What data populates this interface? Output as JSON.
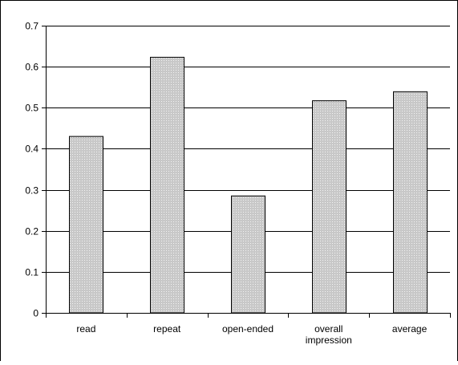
{
  "chart_data": {
    "type": "bar",
    "categories": [
      "read",
      "repeat",
      "open-ended",
      "overall impression",
      "average"
    ],
    "category_lines": [
      [
        "read"
      ],
      [
        "repeat"
      ],
      [
        "open-ended"
      ],
      [
        "overall",
        "impression"
      ],
      [
        "average"
      ]
    ],
    "values": [
      0.43,
      0.623,
      0.285,
      0.517,
      0.539
    ],
    "ylim": [
      0,
      0.7
    ],
    "yticks": [
      "0",
      "0.1",
      "0.2",
      "0.3",
      "0.4",
      "0.5",
      "0.6",
      "0.7"
    ],
    "grid": true,
    "legend": "none",
    "colors": {
      "bar_fill": "#c8c8c8",
      "bar_dots": "#f2f2f2",
      "bar_stroke": "#000000",
      "grid": "#000000"
    }
  }
}
